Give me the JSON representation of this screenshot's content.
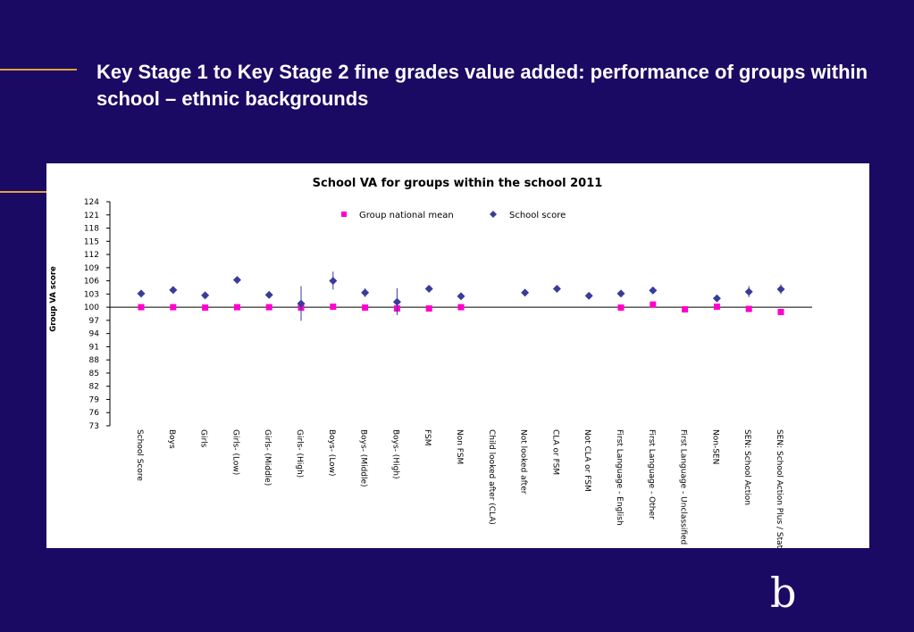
{
  "slide": {
    "title": "Key Stage 1 to Key Stage 2 fine grades value added: performance of groups within school – ethnic backgrounds",
    "logo_text": "b",
    "colors": {
      "background": "#1a0a63",
      "accent": "#e2a13a",
      "text": "#ffffff"
    }
  },
  "chart_data": {
    "type": "scatter",
    "title": "School VA for groups within the school 2011",
    "xlabel": "",
    "ylabel": "Group VA score",
    "ylim": [
      73,
      124
    ],
    "yticks": [
      124,
      121,
      118,
      115,
      112,
      109,
      106,
      103,
      100,
      97,
      94,
      91,
      88,
      85,
      82,
      79,
      76,
      73
    ],
    "reference_line": 100,
    "legend_position": "top",
    "grid": false,
    "categories": [
      "School Score",
      "Boys",
      "Girls",
      "Girls- (Low)",
      "Girls- (Middle)",
      "Girls- (High)",
      "Boys- (Low)",
      "Boys- (Middle)",
      "Boys- (High)",
      "FSM",
      "Non FSM",
      "Child looked after (CLA)",
      "Not looked after",
      "CLA or FSM",
      "Not CLA or FSM",
      "First Language - English",
      "First Language - Other",
      "First Language - Unclassified",
      "Non-SEN",
      "SEN: School Action",
      "SEN: School Action Plus / Stat"
    ],
    "series": [
      {
        "name": "Group national mean",
        "color": "#ff00cc",
        "marker": "square",
        "values": [
          100.0,
          100.0,
          99.9,
          100.0,
          100.0,
          99.9,
          100.1,
          99.9,
          99.7,
          99.7,
          100.0,
          null,
          null,
          null,
          null,
          99.9,
          100.6,
          99.5,
          100.1,
          99.6,
          98.9
        ]
      },
      {
        "name": "School score",
        "color": "#3b3b9a",
        "marker": "diamond",
        "values": [
          103.1,
          103.9,
          102.7,
          106.2,
          102.8,
          100.8,
          106.0,
          103.3,
          101.2,
          104.2,
          102.5,
          null,
          103.3,
          104.2,
          102.6,
          103.1,
          103.8,
          null,
          102.0,
          103.5,
          104.1
        ],
        "error_range": [
          [
            102.6,
            103.6
          ],
          [
            103.4,
            104.4
          ],
          [
            102.2,
            103.2
          ],
          [
            105.7,
            106.7
          ],
          [
            102.3,
            103.3
          ],
          [
            96.9,
            104.8
          ],
          [
            104.0,
            108.1
          ],
          [
            102.3,
            104.3
          ],
          [
            98.2,
            104.3
          ],
          [
            103.7,
            104.7
          ],
          [
            102.0,
            103.0
          ],
          null,
          [
            102.8,
            103.8
          ],
          [
            103.7,
            104.7
          ],
          [
            102.1,
            103.1
          ],
          [
            102.6,
            103.6
          ],
          [
            103.3,
            104.3
          ],
          null,
          [
            101.5,
            102.5
          ],
          [
            102.3,
            104.8
          ],
          [
            103.0,
            105.2
          ]
        ]
      }
    ]
  }
}
